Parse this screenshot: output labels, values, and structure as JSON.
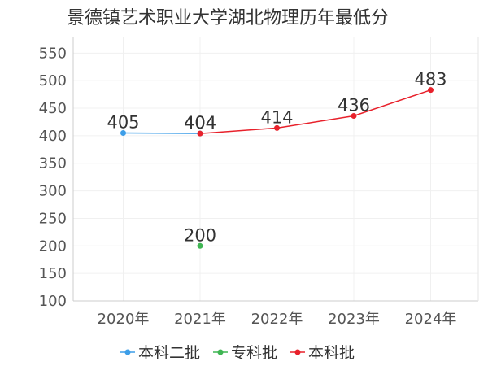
{
  "chart_data": {
    "type": "line",
    "title": "景德镇艺术职业大学湖北物理历年最低分",
    "categories": [
      "2020年",
      "2021年",
      "2022年",
      "2023年",
      "2024年"
    ],
    "yticks": [
      100,
      150,
      200,
      250,
      300,
      350,
      400,
      450,
      500,
      550
    ],
    "ylim": [
      100,
      580
    ],
    "grid": true,
    "legend_position": "bottom",
    "series": [
      {
        "name": "本科二批",
        "color": "#3d9ee8",
        "values": [
          405,
          404,
          null,
          null,
          null
        ]
      },
      {
        "name": "专科批",
        "color": "#3fb553",
        "values": [
          null,
          200,
          null,
          null,
          null
        ]
      },
      {
        "name": "本科批",
        "color": "#e8212b",
        "values": [
          null,
          404,
          414,
          436,
          483
        ]
      }
    ]
  }
}
